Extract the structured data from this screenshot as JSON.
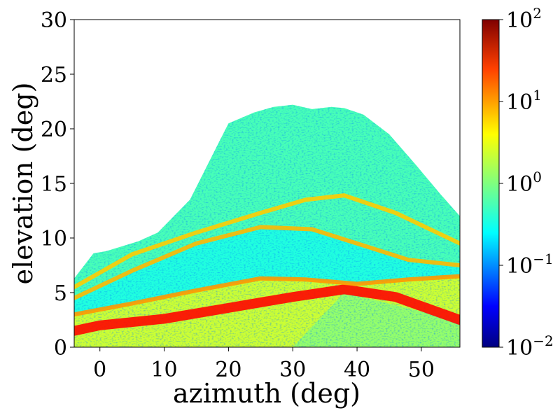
{
  "chart_data": {
    "type": "heatmap",
    "title": "",
    "xlabel": "azimuth (deg)",
    "ylabel": "elevation (deg)",
    "xlim": [
      -4,
      56
    ],
    "ylim": [
      0,
      30
    ],
    "xticks": [
      0,
      10,
      20,
      30,
      40,
      50
    ],
    "yticks": [
      0,
      5,
      10,
      15,
      20,
      25,
      30
    ],
    "colormap": "jet",
    "color_scale": "log",
    "colorbar": {
      "range": [
        0.01,
        100
      ],
      "ticks": [
        {
          "value": 0.01,
          "base": "10",
          "exp": "−2"
        },
        {
          "value": 0.1,
          "base": "10",
          "exp": "−1"
        },
        {
          "value": 1,
          "base": "10",
          "exp": "0"
        },
        {
          "value": 10,
          "base": "10",
          "exp": "1"
        },
        {
          "value": 100,
          "base": "10",
          "exp": "2"
        }
      ]
    },
    "coverage_upper_boundary": {
      "description": "upper edge of the non-empty data region (elevation vs azimuth)",
      "azimuth": [
        -4,
        -1,
        1,
        6,
        9,
        14,
        17,
        20,
        24,
        27,
        30,
        33,
        36,
        38,
        41,
        45,
        49,
        53,
        56
      ],
      "elevation": [
        6.3,
        8.6,
        8.8,
        9.7,
        10.5,
        13.5,
        17.0,
        20.5,
        21.5,
        22.0,
        22.2,
        21.8,
        22.0,
        21.9,
        21.3,
        19.5,
        16.8,
        14.0,
        12.0
      ]
    },
    "high_intensity_bands": [
      {
        "name": "band-1",
        "azimuth": [
          -4,
          0,
          10,
          20,
          30,
          38,
          46,
          56
        ],
        "elevation": [
          1.5,
          2.0,
          2.6,
          3.6,
          4.6,
          5.3,
          4.6,
          2.5
        ],
        "level": 30
      },
      {
        "name": "band-2",
        "azimuth": [
          -4,
          5,
          15,
          25,
          32,
          40,
          48,
          56
        ],
        "elevation": [
          3.0,
          4.0,
          5.2,
          6.3,
          6.2,
          5.8,
          6.2,
          6.5
        ],
        "level": 8
      },
      {
        "name": "band-3",
        "azimuth": [
          -4,
          5,
          15,
          25,
          33,
          40,
          48,
          56
        ],
        "elevation": [
          4.5,
          7.0,
          9.5,
          11.0,
          10.8,
          9.5,
          8.0,
          7.5
        ],
        "level": 6
      },
      {
        "name": "band-4",
        "azimuth": [
          -4,
          5,
          15,
          25,
          32,
          38,
          46,
          56
        ],
        "elevation": [
          5.5,
          8.5,
          10.5,
          12.3,
          13.5,
          13.9,
          12.3,
          9.5
        ],
        "level": 5
      }
    ],
    "dominant_values": {
      "upper_lobe": 0.6,
      "middle_lobe": 0.4,
      "lower_region": 2.0,
      "lower_right_region": 1.2
    }
  }
}
